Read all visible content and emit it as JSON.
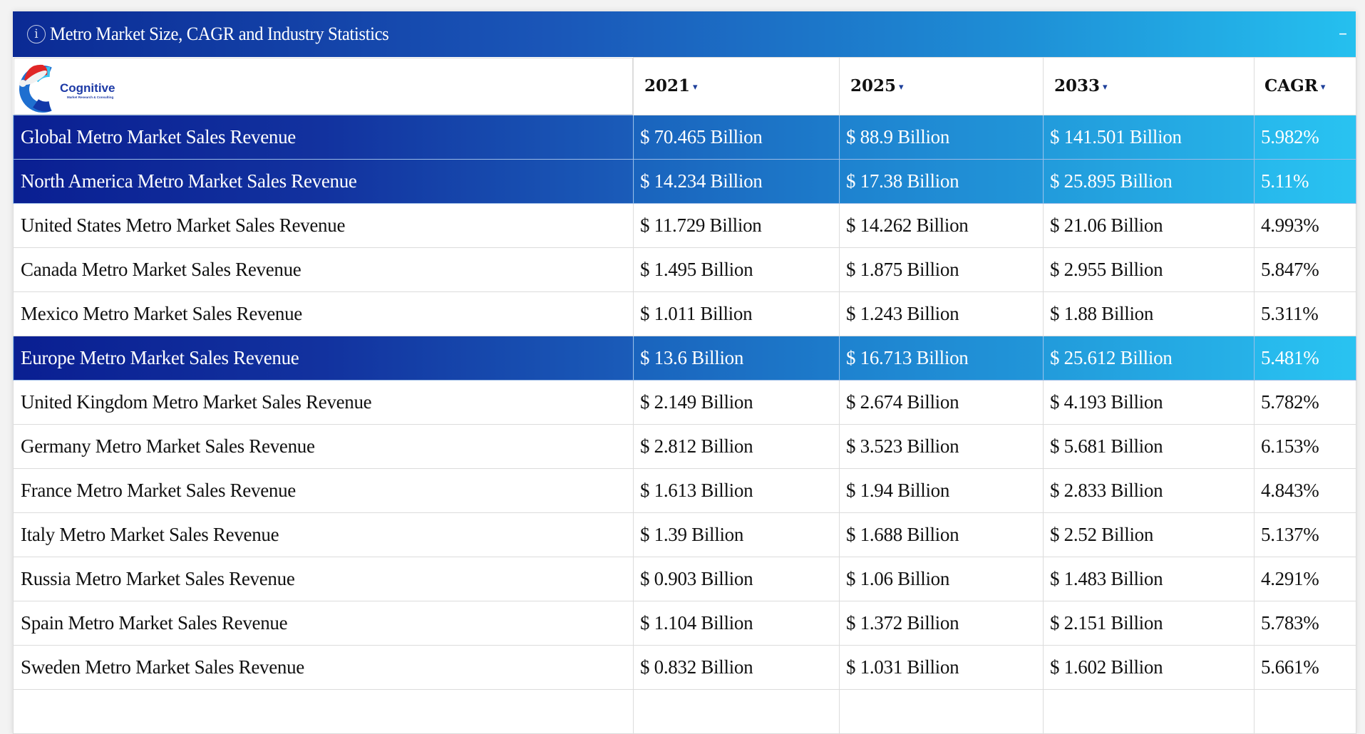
{
  "panel": {
    "title": "Metro Market Size, CAGR and Industry Statistics",
    "info_icon": "info-circle-icon",
    "collapse_label": "–",
    "colors": {
      "header_start": "#0b2a94",
      "header_end": "#25c0ef",
      "sort_arrow": "#1d3f9a"
    }
  },
  "logo": {
    "name": "Cognitive",
    "tagline": "Market Research & Consulting"
  },
  "table": {
    "columns": [
      {
        "label": "2021",
        "sort_icon": "sort-down-icon"
      },
      {
        "label": "2025",
        "sort_icon": "sort-down-icon"
      },
      {
        "label": "2033",
        "sort_icon": "sort-down-icon"
      },
      {
        "label": "CAGR",
        "sort_icon": "sort-down-icon"
      }
    ],
    "sort_arrow": "▾",
    "rows": [
      {
        "label": "Global Metro Market Sales Revenue",
        "highlight": true,
        "y2021": "$ 70.465 Billion",
        "y2025": "$ 88.9 Billion",
        "y2033": "$ 141.501 Billion",
        "cagr": "5.982%"
      },
      {
        "label": "North America Metro Market Sales Revenue",
        "highlight": true,
        "y2021": "$ 14.234 Billion",
        "y2025": "$ 17.38 Billion",
        "y2033": "$ 25.895 Billion",
        "cagr": "5.11%"
      },
      {
        "label": "United States Metro Market Sales Revenue",
        "highlight": false,
        "y2021": "$ 11.729 Billion",
        "y2025": "$ 14.262 Billion",
        "y2033": "$ 21.06 Billion",
        "cagr": "4.993%"
      },
      {
        "label": "Canada Metro Market Sales Revenue",
        "highlight": false,
        "y2021": "$ 1.495 Billion",
        "y2025": "$ 1.875 Billion",
        "y2033": "$ 2.955 Billion",
        "cagr": "5.847%"
      },
      {
        "label": "Mexico Metro Market Sales Revenue",
        "highlight": false,
        "y2021": "$ 1.011 Billion",
        "y2025": "$ 1.243 Billion",
        "y2033": "$ 1.88 Billion",
        "cagr": "5.311%"
      },
      {
        "label": "Europe Metro Market Sales Revenue",
        "highlight": true,
        "y2021": "$ 13.6 Billion",
        "y2025": "$ 16.713 Billion",
        "y2033": "$ 25.612 Billion",
        "cagr": "5.481%"
      },
      {
        "label": "United Kingdom Metro Market Sales Revenue",
        "highlight": false,
        "y2021": "$ 2.149 Billion",
        "y2025": "$ 2.674 Billion",
        "y2033": "$ 4.193 Billion",
        "cagr": "5.782%"
      },
      {
        "label": "Germany Metro Market Sales Revenue",
        "highlight": false,
        "y2021": "$ 2.812 Billion",
        "y2025": "$ 3.523 Billion",
        "y2033": "$ 5.681 Billion",
        "cagr": "6.153%"
      },
      {
        "label": "France Metro Market Sales Revenue",
        "highlight": false,
        "y2021": "$ 1.613 Billion",
        "y2025": "$ 1.94 Billion",
        "y2033": "$ 2.833 Billion",
        "cagr": "4.843%"
      },
      {
        "label": "Italy Metro Market Sales Revenue",
        "highlight": false,
        "y2021": "$ 1.39 Billion",
        "y2025": "$ 1.688 Billion",
        "y2033": "$ 2.52 Billion",
        "cagr": "5.137%"
      },
      {
        "label": "Russia Metro Market Sales Revenue",
        "highlight": false,
        "y2021": "$ 0.903 Billion",
        "y2025": "$ 1.06 Billion",
        "y2033": "$ 1.483 Billion",
        "cagr": "4.291%"
      },
      {
        "label": "Spain Metro Market Sales Revenue",
        "highlight": false,
        "y2021": "$ 1.104 Billion",
        "y2025": "$ 1.372 Billion",
        "y2033": "$ 2.151 Billion",
        "cagr": "5.783%"
      },
      {
        "label": "Sweden Metro Market Sales Revenue",
        "highlight": false,
        "y2021": "$ 0.832 Billion",
        "y2025": "$ 1.031 Billion",
        "y2033": "$ 1.602 Billion",
        "cagr": "5.661%"
      },
      {
        "label": "",
        "highlight": false,
        "y2021": "",
        "y2025": "",
        "y2033": "",
        "cagr": ""
      }
    ]
  }
}
